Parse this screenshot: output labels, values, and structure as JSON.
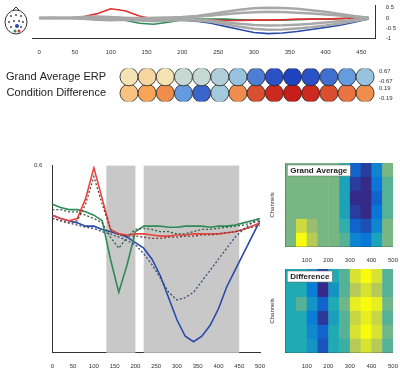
{
  "chart_data": [
    {
      "type": "line",
      "x": [
        0,
        20,
        40,
        60,
        80,
        100,
        120,
        140,
        160,
        180,
        200,
        220,
        240,
        260,
        280,
        300,
        320,
        340,
        360,
        380,
        400,
        420,
        440,
        460
      ],
      "xlim": [
        -10,
        470
      ],
      "xticks": [
        0,
        50,
        100,
        150,
        200,
        250,
        300,
        350,
        400,
        450
      ],
      "ylim": [
        -1,
        0.6
      ],
      "yticks": [
        -1,
        -0.5,
        0,
        0.5
      ],
      "series": [
        {
          "color": "#a8a8a8",
          "values": [
            0,
            0,
            0,
            0.05,
            0.08,
            0.05,
            0,
            0,
            0,
            0.02,
            0.05,
            0.1,
            0.2,
            0.3,
            0.4,
            0.47,
            0.5,
            0.48,
            0.45,
            0.38,
            0.3,
            0.2,
            0.1,
            0.02
          ]
        },
        {
          "color": "#a8a8a8",
          "values": [
            0,
            0,
            0,
            0.02,
            0.04,
            0.03,
            0,
            -0.02,
            0,
            0.01,
            0.03,
            0.06,
            0.12,
            0.18,
            0.24,
            0.28,
            0.3,
            0.29,
            0.26,
            0.22,
            0.17,
            0.12,
            0.06,
            0.01
          ]
        },
        {
          "color": "#a8a8a8",
          "values": [
            0,
            0,
            0,
            -0.02,
            -0.05,
            -0.05,
            -0.05,
            -0.08,
            -0.1,
            -0.08,
            -0.06,
            -0.08,
            -0.12,
            -0.2,
            -0.28,
            -0.34,
            -0.36,
            -0.35,
            -0.32,
            -0.28,
            -0.22,
            -0.16,
            -0.08,
            -0.02
          ]
        },
        {
          "color": "#a8a8a8",
          "values": [
            0,
            0,
            0,
            -0.03,
            -0.08,
            -0.1,
            -0.08,
            -0.12,
            -0.15,
            -0.12,
            -0.1,
            -0.12,
            -0.18,
            -0.3,
            -0.42,
            -0.52,
            -0.56,
            -0.55,
            -0.5,
            -0.44,
            -0.36,
            -0.26,
            -0.14,
            -0.04
          ]
        },
        {
          "color": "#e03030",
          "values": [
            0,
            0.02,
            0,
            0.05,
            0.2,
            0.45,
            0.35,
            0.1,
            -0.05,
            -0.1,
            -0.1,
            -0.08,
            -0.1,
            -0.12,
            -0.12,
            -0.1,
            -0.1,
            -0.08,
            -0.05,
            -0.05,
            -0.05,
            -0.03,
            0,
            0.02
          ]
        },
        {
          "color": "#2e8b57",
          "values": [
            0,
            0,
            0,
            0,
            -0.02,
            -0.05,
            -0.1,
            -0.25,
            -0.3,
            -0.2,
            -0.08,
            -0.05,
            -0.05,
            -0.05,
            -0.08,
            -0.1,
            -0.1,
            -0.1,
            -0.08,
            -0.05,
            -0.05,
            -0.03,
            0,
            0
          ]
        },
        {
          "color": "#2a4aa8",
          "values": [
            0,
            0,
            0,
            0,
            0,
            0.02,
            0,
            -0.02,
            -0.05,
            -0.08,
            -0.1,
            -0.15,
            -0.25,
            -0.4,
            -0.55,
            -0.7,
            -0.75,
            -0.72,
            -0.65,
            -0.55,
            -0.45,
            -0.35,
            -0.2,
            -0.05
          ]
        }
      ]
    },
    {
      "type": "topomap",
      "rows": [
        {
          "label": "Grand Average ERP",
          "clim": [
            -0.67,
            0.67
          ],
          "values": [
            0.05,
            0.1,
            0.05,
            -0.1,
            -0.1,
            -0.15,
            -0.2,
            -0.45,
            -0.6,
            -0.65,
            -0.6,
            -0.5,
            -0.35,
            -0.2
          ]
        },
        {
          "label": "Condition Difference",
          "clim": [
            -0.19,
            0.19
          ],
          "values": [
            0.05,
            0.08,
            0.1,
            -0.1,
            -0.15,
            -0.05,
            0.1,
            0.15,
            0.18,
            0.19,
            0.18,
            0.15,
            0.12,
            0.1
          ]
        }
      ]
    },
    {
      "type": "line",
      "x": [
        0,
        20,
        40,
        60,
        80,
        100,
        120,
        140,
        160,
        180,
        200,
        220,
        240,
        260,
        280,
        300,
        320,
        340,
        360,
        380,
        400,
        420,
        440,
        460,
        480,
        500
      ],
      "xlim": [
        0,
        500
      ],
      "xticks": [
        0,
        50,
        100,
        150,
        200,
        250,
        300,
        350,
        400,
        450,
        500
      ],
      "ylim": [
        -1.1,
        0.6
      ],
      "yticks": [
        0.6
      ],
      "regions": [
        [
          130,
          200
        ],
        [
          220,
          450
        ]
      ],
      "series": [
        {
          "color": "#7a3a3a",
          "line_style": "dotted",
          "values": [
            0.12,
            0.1,
            0.08,
            0.1,
            0.25,
            0.5,
            0.25,
            0.02,
            -0.03,
            -0.04,
            -0.04,
            -0.05,
            -0.06,
            -0.06,
            -0.05,
            -0.05,
            -0.04,
            -0.04,
            -0.03,
            -0.03,
            -0.02,
            -0.01,
            0,
            0.02,
            0.04,
            0.06
          ]
        },
        {
          "color": "#2f5f3f",
          "line_style": "dotted",
          "values": [
            0.2,
            0.2,
            0.18,
            0.18,
            0.15,
            0.12,
            0.08,
            -0.05,
            -0.15,
            -0.05,
            0.02,
            0.03,
            0.02,
            0,
            0,
            -0.02,
            -0.02,
            0,
            0.02,
            0.02,
            0.03,
            0.04,
            0.05,
            0.06,
            0.08,
            0.1
          ]
        },
        {
          "color": "#3a4a7a",
          "line_style": "dotted",
          "values": [
            0.12,
            0.1,
            0.08,
            0.06,
            0.04,
            0.03,
            0,
            -0.02,
            -0.05,
            -0.08,
            -0.12,
            -0.2,
            -0.3,
            -0.42,
            -0.55,
            -0.62,
            -0.6,
            -0.55,
            -0.45,
            -0.35,
            -0.25,
            -0.15,
            -0.05,
            0.02,
            0.08,
            0.12
          ]
        },
        {
          "color": "#e8453c",
          "line_style": "solid",
          "values": [
            0.15,
            0.12,
            0.1,
            0.12,
            0.3,
            0.58,
            0.3,
            0.02,
            -0.02,
            -0.03,
            -0.02,
            -0.02,
            -0.03,
            -0.04,
            -0.04,
            -0.03,
            -0.03,
            -0.02,
            -0.02,
            -0.02,
            -0.02,
            -0.01,
            0,
            0.02,
            0.05,
            0.08
          ]
        },
        {
          "color": "#2e8b57",
          "line_style": "solid",
          "values": [
            0.25,
            0.22,
            0.2,
            0.2,
            0.18,
            0.15,
            0.1,
            -0.25,
            -0.55,
            -0.3,
            0,
            0.05,
            0.05,
            0.05,
            0.04,
            0.04,
            0.05,
            0.05,
            0.05,
            0.04,
            0.05,
            0.05,
            0.06,
            0.08,
            0.1,
            0.12
          ]
        },
        {
          "color": "#2a4aa8",
          "line_style": "solid",
          "values": [
            0.15,
            0.12,
            0.1,
            0.08,
            0.05,
            0.05,
            0.02,
            0,
            -0.02,
            -0.05,
            -0.1,
            -0.15,
            -0.25,
            -0.4,
            -0.6,
            -0.8,
            -0.95,
            -1.0,
            -0.95,
            -0.85,
            -0.7,
            -0.5,
            -0.35,
            -0.2,
            -0.05,
            0.1
          ]
        }
      ]
    },
    {
      "type": "heatmap",
      "title": "Grand Average",
      "y_label": "Channels",
      "tick_labels": "x",
      "x_edges": [
        0,
        50,
        100,
        150,
        200,
        250,
        300,
        350,
        400,
        450,
        500
      ],
      "xlim": [
        0,
        500
      ],
      "xticks": [
        100,
        200,
        300,
        400,
        500
      ],
      "cells": [
        [
          0,
          0,
          0,
          0,
          0,
          -0.2,
          -0.7,
          -0.9,
          -0.5,
          0
        ],
        [
          0,
          0,
          0,
          0,
          0,
          -0.3,
          -0.9,
          -1,
          -0.6,
          -0.1
        ],
        [
          0,
          0,
          0,
          0,
          0,
          -0.3,
          -1,
          -1,
          -0.7,
          -0.1
        ],
        [
          0,
          0,
          0,
          0,
          0,
          -0.3,
          -0.9,
          -1,
          -0.6,
          -0.1
        ],
        [
          0,
          0.3,
          0.1,
          0,
          0,
          -0.2,
          -0.7,
          -0.8,
          -0.5,
          0
        ],
        [
          0,
          0.5,
          0.2,
          0,
          0,
          -0.1,
          -0.5,
          -0.6,
          -0.3,
          0
        ]
      ]
    },
    {
      "type": "heatmap",
      "title": "Difference",
      "y_label": "Channels",
      "tick_labels": "x",
      "x_edges": [
        0,
        50,
        100,
        150,
        200,
        250,
        300,
        350,
        400,
        450,
        500
      ],
      "xlim": [
        0,
        500
      ],
      "xticks": [
        100,
        200,
        300,
        400,
        500
      ],
      "cells": [
        [
          0,
          0,
          -0.1,
          -0.4,
          0,
          0.1,
          0.4,
          0.5,
          0.4,
          0.1
        ],
        [
          0,
          0,
          -0.2,
          -0.5,
          -0.1,
          0.1,
          0.3,
          0.4,
          0.3,
          0.1
        ],
        [
          0,
          0.1,
          -0.1,
          -0.3,
          0,
          0.15,
          0.45,
          0.5,
          0.45,
          0.15
        ],
        [
          0,
          0,
          -0.2,
          -0.45,
          -0.05,
          0.1,
          0.35,
          0.45,
          0.35,
          0.1
        ],
        [
          0,
          0,
          -0.15,
          -0.3,
          0,
          0.1,
          0.4,
          0.5,
          0.4,
          0.15
        ],
        [
          0,
          0,
          -0.1,
          -0.35,
          0,
          0.05,
          0.3,
          0.4,
          0.3,
          0.1
        ]
      ]
    }
  ]
}
